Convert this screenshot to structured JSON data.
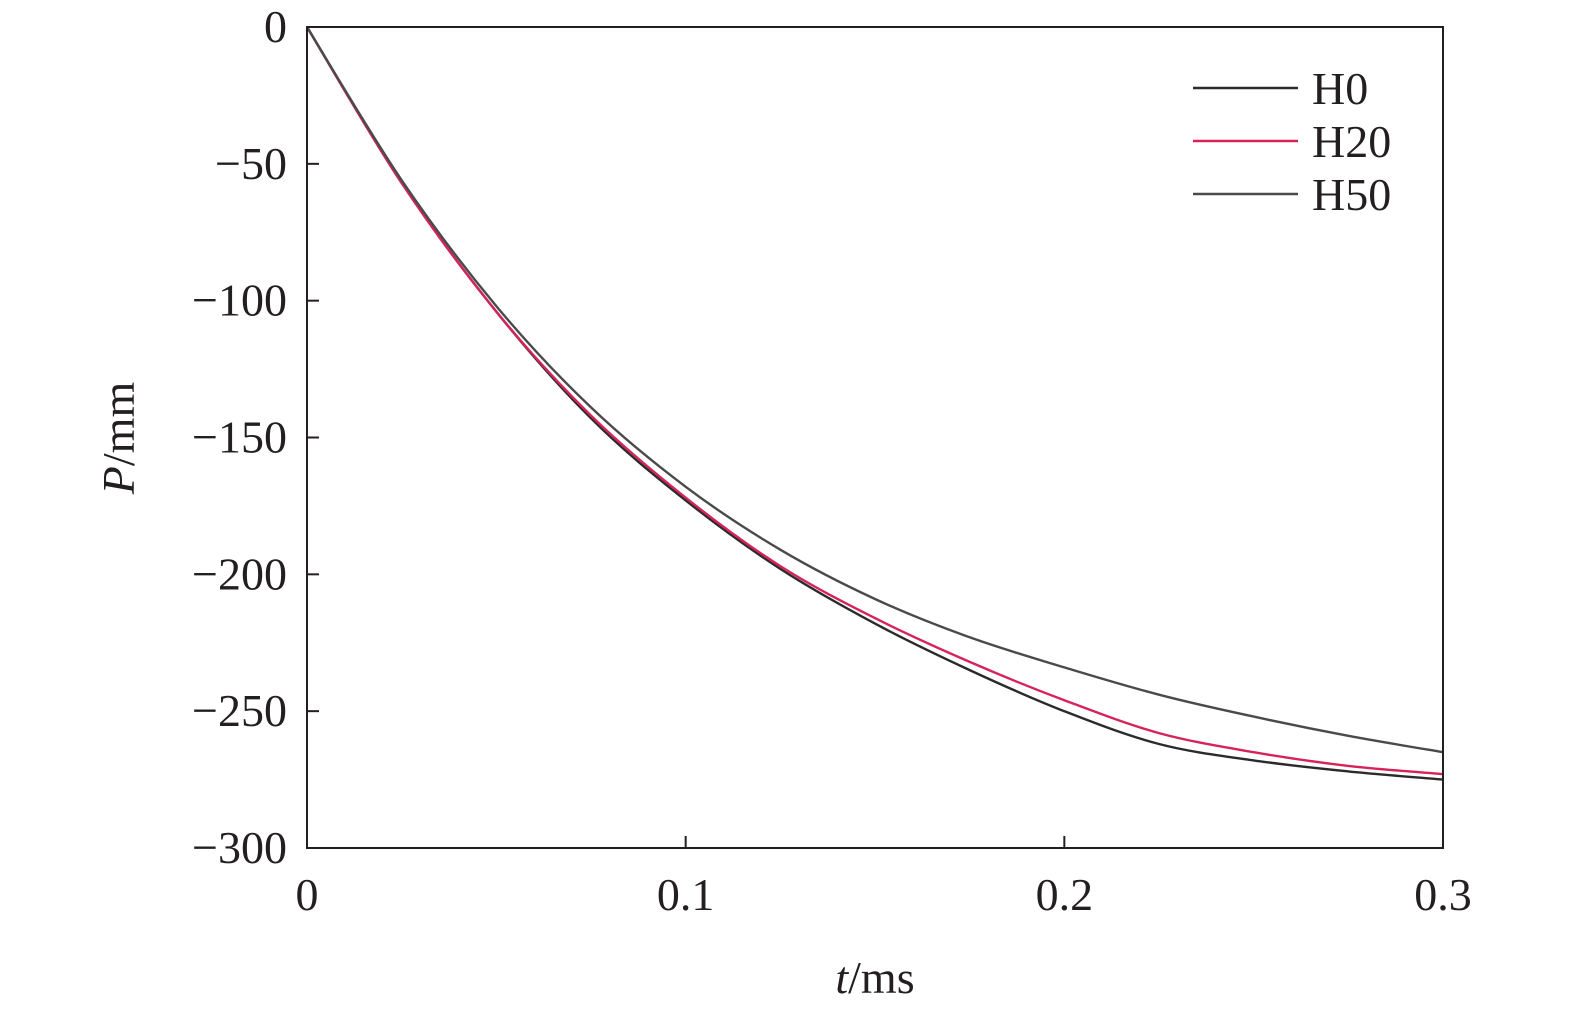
{
  "chart_data": {
    "type": "line",
    "xlabel_var": "t",
    "xlabel_unit": "/ms",
    "ylabel_var": "P",
    "ylabel_unit": "/mm",
    "xlim": [
      0,
      0.3
    ],
    "ylim": [
      -300,
      0
    ],
    "xticks": [
      0,
      0.1,
      0.2,
      0.3
    ],
    "xtick_labels": [
      "0",
      "0.1",
      "0.2",
      "0.3"
    ],
    "yticks": [
      0,
      -50,
      -100,
      -150,
      -200,
      -250,
      -300
    ],
    "ytick_labels": [
      "0",
      "−50",
      "−100",
      "−150",
      "−200",
      "−250",
      "−300"
    ],
    "grid": false,
    "legend_position": "top-right",
    "x": [
      0,
      0.025,
      0.05,
      0.075,
      0.1,
      0.125,
      0.15,
      0.175,
      0.2,
      0.225,
      0.25,
      0.275,
      0.3
    ],
    "series": [
      {
        "name": "H0",
        "color": "#2b2b2b",
        "values": [
          0,
          -57,
          -104,
          -143,
          -173,
          -198,
          -218,
          -235,
          -250,
          -262,
          -268,
          -272,
          -275
        ]
      },
      {
        "name": "H20",
        "color": "#d6245a",
        "values": [
          0,
          -57,
          -104,
          -142,
          -172,
          -197,
          -216,
          -232,
          -246,
          -258,
          -265,
          -270,
          -273
        ]
      },
      {
        "name": "H50",
        "color": "#4a4a4a",
        "values": [
          0,
          -56,
          -102,
          -139,
          -168,
          -191,
          -209,
          -223,
          -234,
          -244,
          -252,
          -259,
          -265
        ]
      }
    ]
  }
}
